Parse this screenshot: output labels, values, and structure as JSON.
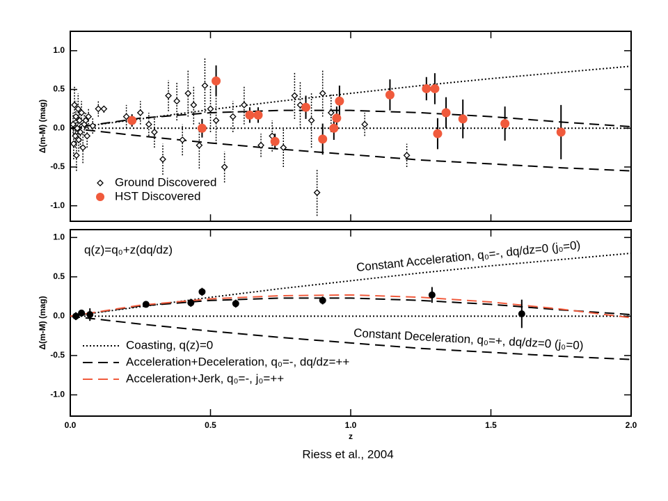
{
  "caption": "Riess et al., 2004",
  "chart_data": [
    {
      "type": "scatter",
      "ylabel": "Δ(m-M) (mag)",
      "xlim": [
        0,
        2
      ],
      "ylim": [
        -1.2,
        1.25
      ],
      "xticks": [
        0,
        0.5,
        1,
        1.5,
        2
      ],
      "yticks": [
        {
          "value": -1,
          "label": "-1.0"
        },
        {
          "value": -0.5,
          "label": "-0.5"
        },
        {
          "value": 0,
          "label": "0.0"
        },
        {
          "value": 0.5,
          "label": "0.5"
        },
        {
          "value": 1,
          "label": "1.0"
        }
      ],
      "series": [
        {
          "name": "Ground Discovered",
          "color": "#000000",
          "marker": "diamond",
          "x": [
            0.01,
            0.012,
            0.015,
            0.018,
            0.02,
            0.022,
            0.025,
            0.028,
            0.03,
            0.033,
            0.036,
            0.04,
            0.045,
            0.05,
            0.055,
            0.06,
            0.065,
            0.08,
            0.1,
            0.12,
            0.2,
            0.25,
            0.28,
            0.3,
            0.33,
            0.35,
            0.38,
            0.4,
            0.42,
            0.44,
            0.46,
            0.48,
            0.5,
            0.52,
            0.55,
            0.58,
            0.62,
            0.68,
            0.72,
            0.76,
            0.8,
            0.82,
            0.86,
            0.88,
            0.9,
            0.93,
            1.05,
            1.2
          ],
          "values": [
            0.05,
            -0.2,
            0.3,
            -0.1,
            0.15,
            -0.35,
            0,
            0.25,
            -0.15,
            0.1,
            -0.05,
            0.2,
            -0.25,
            0.05,
            0.1,
            -0.1,
            0.15,
            0.03,
            0.25,
            0.25,
            0.15,
            0.2,
            0.05,
            -0.05,
            -0.4,
            0.42,
            0.35,
            -0.15,
            0.45,
            0.3,
            -0.22,
            0.55,
            0.25,
            0.1,
            -0.5,
            0.15,
            0.3,
            -0.22,
            -0.1,
            -0.25,
            0.42,
            0.3,
            0.1,
            -0.83,
            0.45,
            0.2,
            0.05,
            -0.35
          ],
          "errors": [
            0.15,
            0.2,
            0.25,
            0.15,
            0.2,
            0.2,
            0.15,
            0.2,
            0.15,
            0.15,
            0.2,
            0.15,
            0.2,
            0.15,
            0.1,
            0.15,
            0.1,
            0.1,
            0.1,
            0.05,
            0.15,
            0.15,
            0.15,
            0.2,
            0.2,
            0.2,
            0.25,
            0.2,
            0.3,
            0.25,
            0.3,
            0.35,
            0.3,
            0.3,
            0.2,
            0.2,
            0.25,
            0.15,
            0.2,
            0.25,
            0.3,
            0.3,
            0.35,
            0.3,
            0.3,
            0.25,
            0.15,
            0.15
          ]
        },
        {
          "name": "HST Discovered",
          "color": "#f05a3c",
          "marker": "circle",
          "x": [
            0.22,
            0.47,
            0.52,
            0.64,
            0.67,
            0.73,
            0.84,
            0.9,
            0.94,
            0.95,
            0.96,
            1.14,
            1.27,
            1.3,
            1.31,
            1.34,
            1.4,
            1.55,
            1.75
          ],
          "values": [
            0.1,
            0,
            0.61,
            0.17,
            0.17,
            -0.17,
            0.27,
            -0.14,
            0,
            0.13,
            0.35,
            0.43,
            0.51,
            0.51,
            -0.07,
            0.2,
            0.12,
            0.06,
            -0.05
          ],
          "errors": [
            0.08,
            0.12,
            0.2,
            0.1,
            0.1,
            0.1,
            0.15,
            0.2,
            0.15,
            0.15,
            0.2,
            0.2,
            0.15,
            0.2,
            0.2,
            0.2,
            0.25,
            0.22,
            0.35
          ]
        }
      ],
      "curves": [
        {
          "style": "dotted",
          "color": "#000000",
          "x": [
            0,
            2
          ],
          "values": [
            0,
            0
          ]
        },
        {
          "style": "dotted",
          "color": "#000000",
          "x": [
            0,
            0.25,
            0.5,
            0.75,
            1,
            1.25,
            1.5,
            1.75,
            2
          ],
          "values": [
            0,
            0.12,
            0.24,
            0.35,
            0.45,
            0.55,
            0.64,
            0.72,
            0.8
          ]
        },
        {
          "style": "dashed",
          "color": "#000000",
          "x": [
            0,
            0.25,
            0.5,
            0.75,
            1,
            1.25,
            1.5,
            1.75,
            2
          ],
          "values": [
            0,
            -0.1,
            -0.19,
            -0.27,
            -0.34,
            -0.41,
            -0.46,
            -0.51,
            -0.55
          ]
        },
        {
          "style": "dashed",
          "color": "#000000",
          "x": [
            0,
            0.25,
            0.5,
            0.75,
            1,
            1.25,
            1.5,
            1.75,
            2
          ],
          "values": [
            0,
            0.13,
            0.2,
            0.23,
            0.23,
            0.2,
            0.15,
            0.08,
            0.02
          ]
        }
      ]
    },
    {
      "type": "scatter",
      "ylabel": "Δ(m-M) (mag)",
      "xlabel": "z",
      "formula": "q(z)=q₀+z(dq/dz)",
      "xlim": [
        0,
        2
      ],
      "ylim": [
        -1.27,
        1.1
      ],
      "xticks": [
        {
          "value": 0,
          "label": "0.0"
        },
        {
          "value": 0.5,
          "label": "0.5"
        },
        {
          "value": 1,
          "label": "1.0"
        },
        {
          "value": 1.5,
          "label": "1.5"
        },
        {
          "value": 2,
          "label": "2.0"
        }
      ],
      "yticks": [
        {
          "value": -1,
          "label": "-1.0"
        },
        {
          "value": -0.5,
          "label": "-0.5"
        },
        {
          "value": 0,
          "label": "0.0"
        },
        {
          "value": 0.5,
          "label": "0.5"
        },
        {
          "value": 1,
          "label": "1.0"
        }
      ],
      "series": [
        {
          "color": "#000000",
          "marker": "circle",
          "x": [
            0.02,
            0.04,
            0.07,
            0.27,
            0.43,
            0.47,
            0.59,
            0.9,
            1.29,
            1.61
          ],
          "values": [
            0,
            0.04,
            0.02,
            0.15,
            0.17,
            0.31,
            0.16,
            0.2,
            0.27,
            0.03
          ],
          "errors": [
            0.05,
            0.04,
            0.08,
            0.04,
            0.05,
            0.05,
            0.05,
            0.05,
            0.1,
            0.18
          ]
        }
      ],
      "curves": [
        {
          "name": "Coasting, q(z)=0",
          "style": "dotted",
          "color": "#000000",
          "x": [
            0,
            2
          ],
          "values": [
            0,
            0
          ]
        },
        {
          "annotation": "Constant Acceleration, q₀=-, dq/dz=0 (j₀=0)",
          "style": "dotted",
          "color": "#000000",
          "x": [
            0,
            0.25,
            0.5,
            0.75,
            1,
            1.25,
            1.5,
            1.75,
            2
          ],
          "values": [
            0,
            0.12,
            0.24,
            0.35,
            0.45,
            0.55,
            0.64,
            0.72,
            0.8
          ]
        },
        {
          "annotation": "Constant Deceleration, q₀=+, dq/dz=0 (j₀=0)",
          "style": "dashed",
          "color": "#000000",
          "x": [
            0,
            0.25,
            0.5,
            0.75,
            1,
            1.25,
            1.5,
            1.75,
            2
          ],
          "values": [
            0,
            -0.1,
            -0.19,
            -0.27,
            -0.34,
            -0.41,
            -0.46,
            -0.51,
            -0.55
          ]
        },
        {
          "name": "Acceleration+Deceleration, q₀=-, dq/dz=++",
          "style": "dashed",
          "color": "#000000",
          "x": [
            0,
            0.25,
            0.5,
            0.75,
            1,
            1.25,
            1.5,
            1.75,
            2
          ],
          "values": [
            0,
            0.13,
            0.2,
            0.23,
            0.23,
            0.2,
            0.15,
            0.08,
            0.02
          ]
        },
        {
          "name": "Acceleration+Jerk, q₀=-, j₀=++",
          "style": "dashed",
          "color": "#f05a3c",
          "x": [
            0,
            0.25,
            0.5,
            0.75,
            1,
            1.25,
            1.5,
            1.75,
            2
          ],
          "values": [
            0,
            0.14,
            0.22,
            0.26,
            0.27,
            0.24,
            0.18,
            0.09,
            -0.02
          ]
        }
      ]
    }
  ]
}
